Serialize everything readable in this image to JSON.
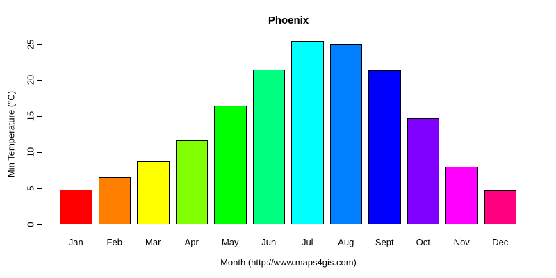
{
  "chart_data": {
    "type": "bar",
    "title": "Phoenix",
    "xlabel": "Month (http://www.maps4gis.com)",
    "ylabel": "Min Temperature (°C)",
    "categories": [
      "Jan",
      "Feb",
      "Mar",
      "Apr",
      "May",
      "Jun",
      "Jul",
      "Aug",
      "Sept",
      "Oct",
      "Nov",
      "Dec"
    ],
    "values": [
      4.8,
      6.6,
      8.8,
      11.7,
      16.5,
      21.5,
      25.4,
      25.0,
      21.4,
      14.7,
      8.0,
      4.7
    ],
    "bar_colors": [
      "#FF0000",
      "#FF8000",
      "#FFFF00",
      "#80FF00",
      "#00FF00",
      "#00FF80",
      "#00FFFF",
      "#0080FF",
      "#0000FF",
      "#8000FF",
      "#FF00FF",
      "#FF0080"
    ],
    "bar_border_color": "#000000",
    "yticks": [
      0,
      5,
      10,
      15,
      20,
      25
    ],
    "ylim": [
      0,
      25.4
    ],
    "grid": false,
    "legend": null,
    "background_color": "#FFFFFF"
  }
}
